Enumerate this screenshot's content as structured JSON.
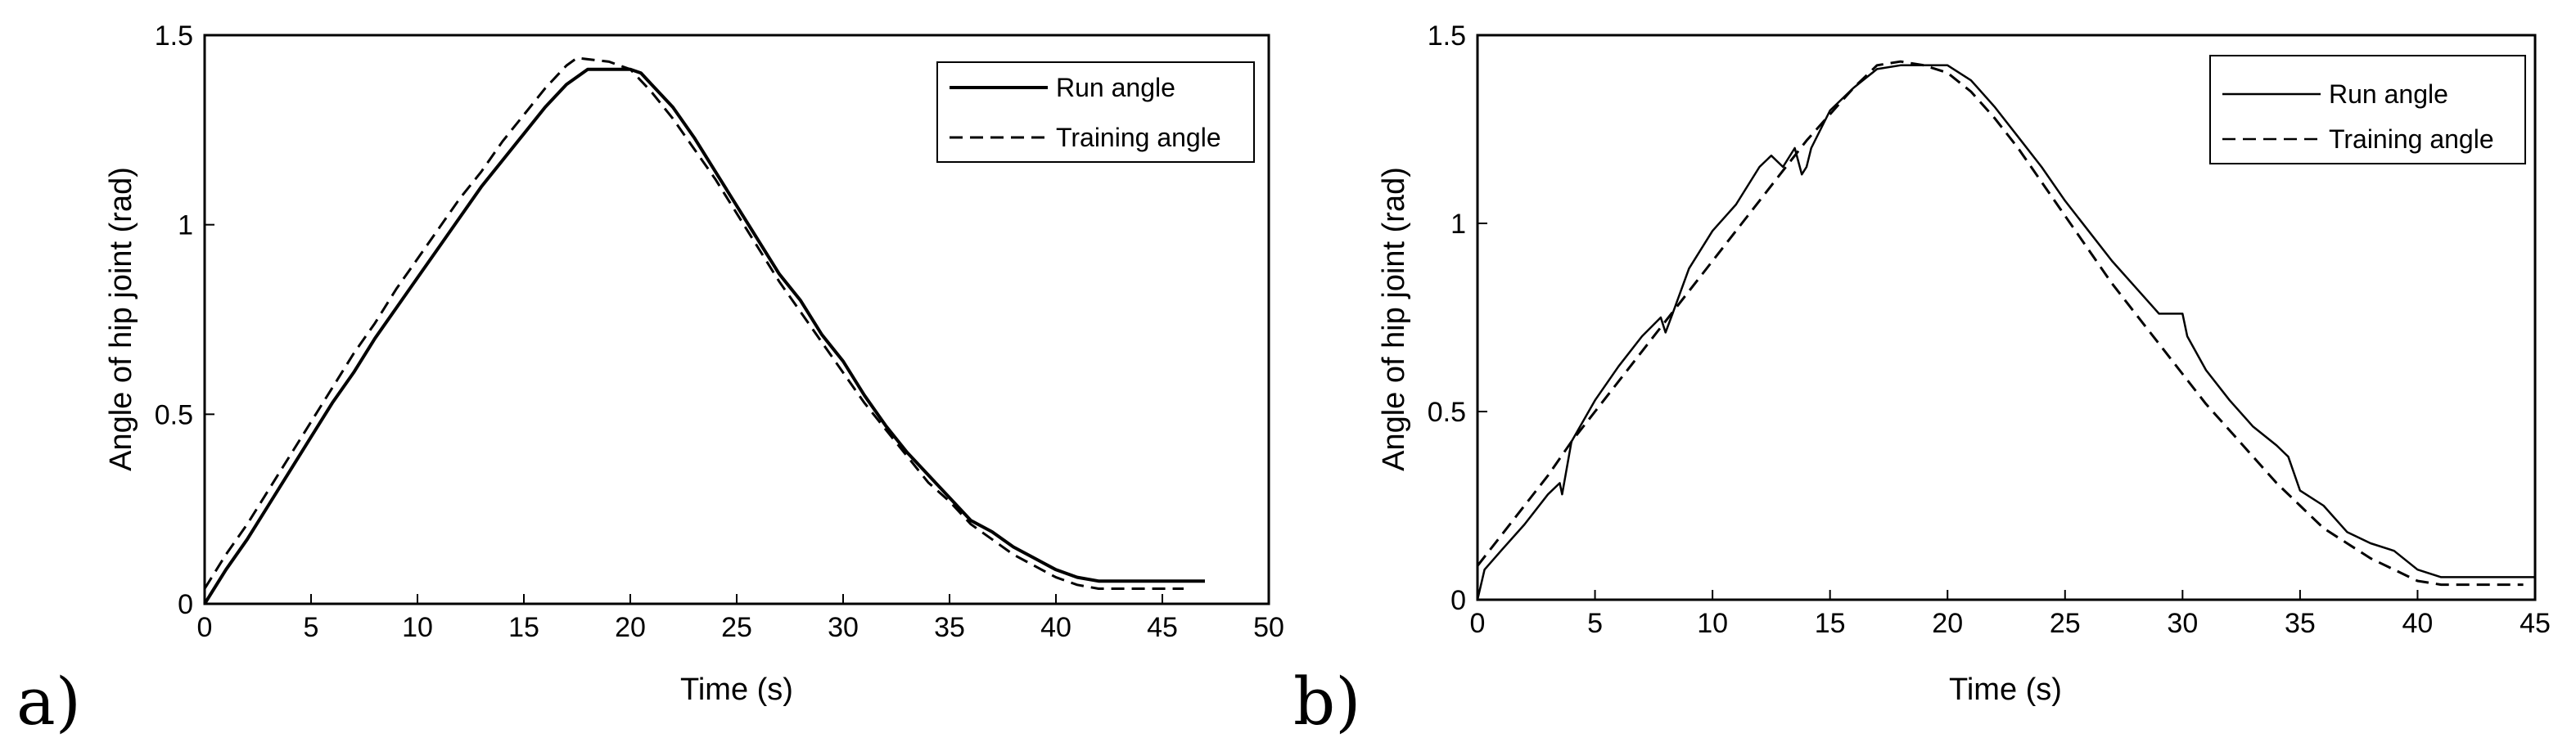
{
  "chart_data": [
    {
      "type": "line",
      "panel_label": "a)",
      "xlabel": "Time (s)",
      "ylabel": "Angle of hip joint (rad)",
      "xlim": [
        0,
        50
      ],
      "ylim": [
        0,
        1.5
      ],
      "xticks": [
        0,
        5,
        10,
        15,
        20,
        25,
        30,
        35,
        40,
        45,
        50
      ],
      "yticks": [
        0,
        0.5,
        1,
        1.5
      ],
      "ytick_labels": [
        "0",
        "0.5",
        "1",
        "1.5"
      ],
      "grid": false,
      "legend_position": "top-right",
      "series": [
        {
          "name": "Run angle",
          "style": "solid",
          "x": [
            0,
            1,
            2,
            3,
            4,
            5,
            6,
            7,
            8,
            9,
            10,
            11,
            12,
            13,
            14,
            15,
            16,
            17,
            18,
            19,
            20,
            20.5,
            21,
            22,
            23,
            24,
            25,
            26,
            27,
            28,
            29,
            30,
            31,
            32,
            33,
            34,
            35,
            36,
            37,
            38,
            39,
            40,
            41,
            42,
            47
          ],
          "y": [
            0,
            0.09,
            0.17,
            0.26,
            0.35,
            0.44,
            0.53,
            0.61,
            0.7,
            0.78,
            0.86,
            0.94,
            1.02,
            1.1,
            1.17,
            1.24,
            1.31,
            1.37,
            1.41,
            1.41,
            1.41,
            1.4,
            1.37,
            1.31,
            1.23,
            1.14,
            1.05,
            0.96,
            0.87,
            0.8,
            0.71,
            0.64,
            0.55,
            0.47,
            0.4,
            0.34,
            0.28,
            0.22,
            0.19,
            0.15,
            0.12,
            0.09,
            0.07,
            0.06,
            0.06
          ]
        },
        {
          "name": "Training angle",
          "style": "dashed",
          "x": [
            0,
            1,
            2,
            3,
            4,
            5,
            6,
            7,
            8,
            9,
            10,
            11,
            12,
            13,
            14,
            15,
            16,
            17,
            17.5,
            19,
            20,
            21,
            22,
            23,
            24,
            25,
            26,
            27,
            28,
            29,
            30,
            31,
            32,
            33,
            34,
            35,
            36,
            37,
            38,
            39,
            40,
            41,
            42,
            45,
            46
          ],
          "y": [
            0.04,
            0.13,
            0.21,
            0.3,
            0.39,
            0.48,
            0.57,
            0.66,
            0.74,
            0.83,
            0.91,
            0.99,
            1.07,
            1.14,
            1.22,
            1.29,
            1.36,
            1.42,
            1.44,
            1.43,
            1.41,
            1.35,
            1.28,
            1.2,
            1.12,
            1.03,
            0.94,
            0.85,
            0.77,
            0.69,
            0.61,
            0.53,
            0.46,
            0.39,
            0.32,
            0.27,
            0.21,
            0.17,
            0.13,
            0.1,
            0.07,
            0.05,
            0.04,
            0.04,
            0.04
          ]
        }
      ]
    },
    {
      "type": "line",
      "panel_label": "b)",
      "xlabel": "Time (s)",
      "ylabel": "Angle of hip joint (rad)",
      "xlim": [
        0,
        45
      ],
      "ylim": [
        0,
        1.5
      ],
      "xticks": [
        0,
        5,
        10,
        15,
        20,
        25,
        30,
        35,
        40,
        45
      ],
      "yticks": [
        0,
        0.5,
        1,
        1.5
      ],
      "ytick_labels": [
        "0",
        "0.5",
        "1",
        "1.5"
      ],
      "grid": false,
      "legend_position": "top-right",
      "series": [
        {
          "name": "Run angle",
          "style": "solid",
          "x": [
            0,
            0.3,
            1,
            2,
            3,
            3.5,
            3.6,
            4,
            5,
            6,
            7,
            7.8,
            8,
            8.3,
            9,
            10,
            11,
            12,
            12.5,
            13,
            13.5,
            13.8,
            14,
            14.2,
            15,
            16,
            17,
            18,
            19,
            20,
            21,
            22,
            23,
            24,
            25,
            26,
            27,
            28,
            29,
            30,
            30.2,
            31,
            32,
            33,
            34,
            34.5,
            35,
            36,
            37,
            38,
            39,
            40,
            41,
            45
          ],
          "y": [
            0,
            0.08,
            0.13,
            0.2,
            0.28,
            0.31,
            0.28,
            0.42,
            0.53,
            0.62,
            0.7,
            0.75,
            0.71,
            0.76,
            0.88,
            0.98,
            1.05,
            1.15,
            1.18,
            1.15,
            1.2,
            1.13,
            1.15,
            1.2,
            1.3,
            1.36,
            1.41,
            1.42,
            1.42,
            1.42,
            1.38,
            1.31,
            1.23,
            1.15,
            1.06,
            0.98,
            0.9,
            0.83,
            0.76,
            0.76,
            0.7,
            0.61,
            0.53,
            0.46,
            0.41,
            0.38,
            0.29,
            0.25,
            0.18,
            0.15,
            0.13,
            0.08,
            0.06,
            0.06
          ]
        },
        {
          "name": "Training angle",
          "style": "dashed",
          "x": [
            0,
            1,
            2,
            3,
            4,
            5,
            6,
            7,
            8,
            9,
            10,
            11,
            12,
            13,
            14,
            15,
            16,
            17,
            18,
            19,
            20,
            21,
            22,
            23,
            24,
            25,
            26,
            27,
            28,
            29,
            30,
            31,
            32,
            33,
            34,
            35,
            36,
            37,
            38,
            39,
            40,
            41,
            44.5
          ],
          "y": [
            0.09,
            0.17,
            0.25,
            0.33,
            0.42,
            0.5,
            0.58,
            0.66,
            0.74,
            0.82,
            0.9,
            0.98,
            1.06,
            1.14,
            1.22,
            1.29,
            1.36,
            1.42,
            1.43,
            1.42,
            1.4,
            1.35,
            1.28,
            1.2,
            1.11,
            1.02,
            0.93,
            0.84,
            0.76,
            0.68,
            0.6,
            0.52,
            0.45,
            0.38,
            0.31,
            0.25,
            0.19,
            0.15,
            0.11,
            0.08,
            0.05,
            0.04,
            0.04
          ]
        }
      ]
    }
  ]
}
